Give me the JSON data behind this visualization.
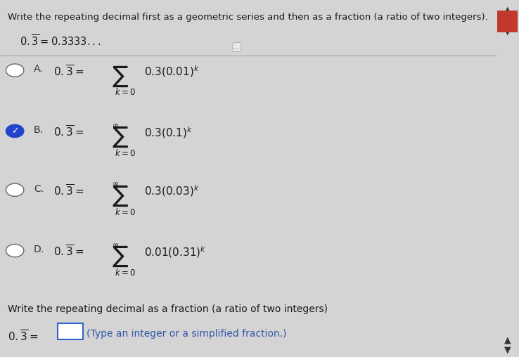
{
  "bg_color": "#d4d4d4",
  "panel_color": "#e8e8e8",
  "title": "Write the repeating decimal first as a geometric series and then as a fraction (a ratio of two integers).",
  "subtitle": "0.3 = 0.3333...",
  "options": [
    {
      "label": "A.",
      "selected": false,
      "formula": "0.3(0.01)",
      "has_inf": false
    },
    {
      "label": "B.",
      "selected": true,
      "formula": "0.3(0.1)",
      "has_inf": true
    },
    {
      "label": "C.",
      "selected": false,
      "formula": "0.3(0.03)",
      "has_inf": true
    },
    {
      "label": "D.",
      "selected": false,
      "formula": "0.01(0.31)",
      "has_inf": true
    }
  ],
  "footer_text": "Write the repeating decimal as a fraction (a ratio of two integers)",
  "answer_hint": "(Type an integer or a simplified fraction.)",
  "scrollbar_color": "#c0392b",
  "dots_text": "..."
}
